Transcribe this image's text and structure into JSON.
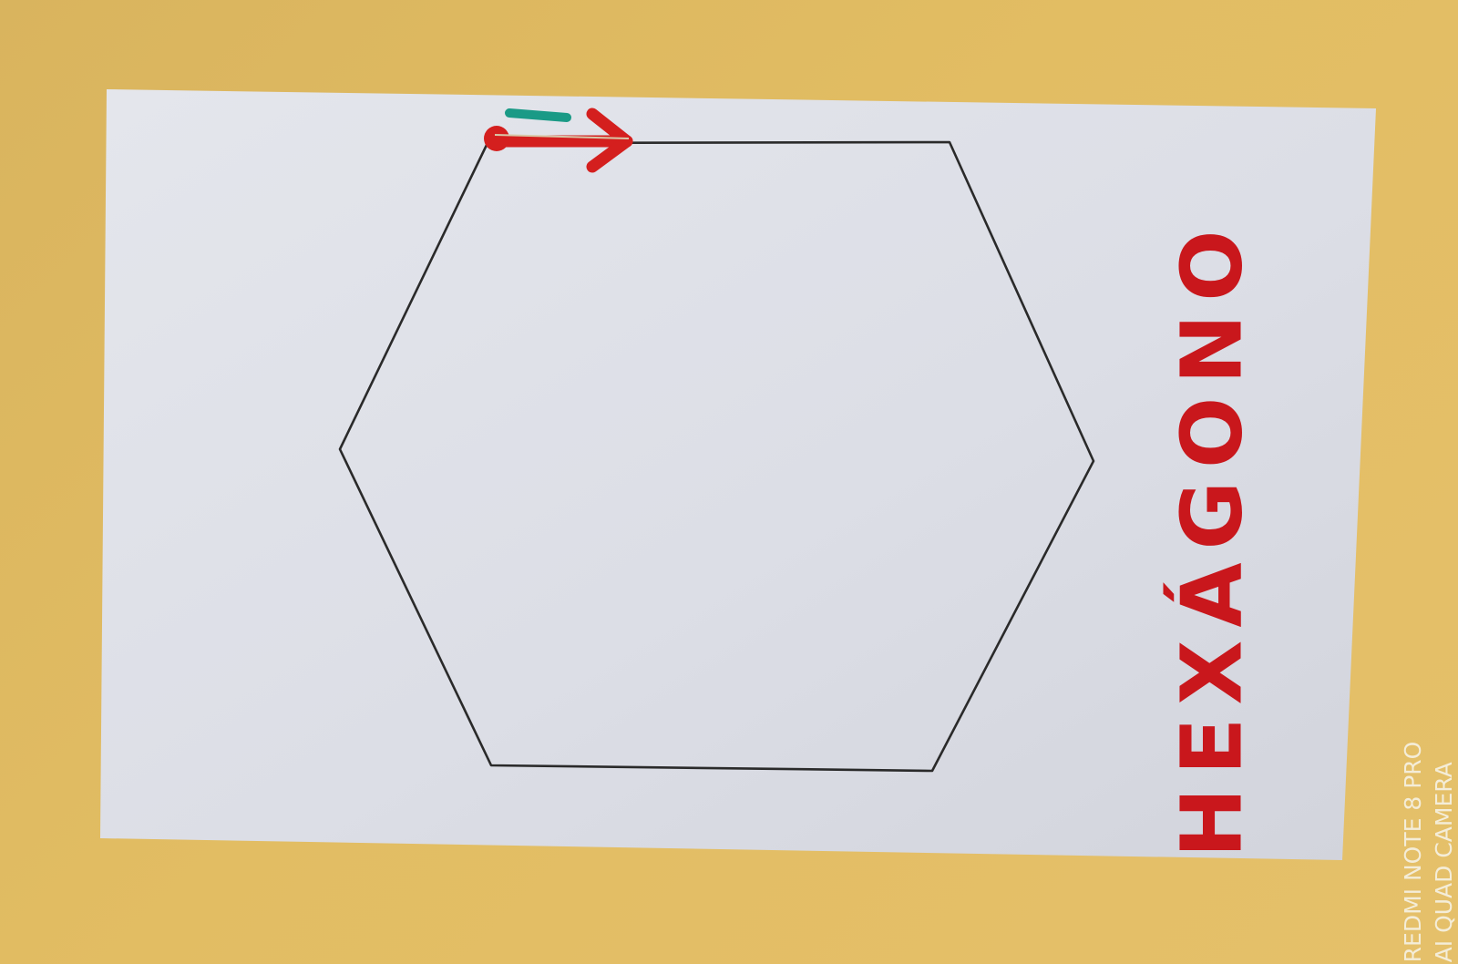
{
  "scene": {
    "background_color": "#e0bb62",
    "paper_color": "#dfe1e8",
    "outline_color": "#2a2a2a",
    "marker_red": "#d41f1e",
    "marker_green": "#1a9a86"
  },
  "drawing": {
    "shape_icon": "hexagon-icon",
    "marker_icon": "arrow-right-icon",
    "label_text": "HEXÁGONO"
  },
  "watermark": {
    "line1": "REDMI NOTE 8 PRO",
    "line2": "AI QUAD CAMERA"
  }
}
